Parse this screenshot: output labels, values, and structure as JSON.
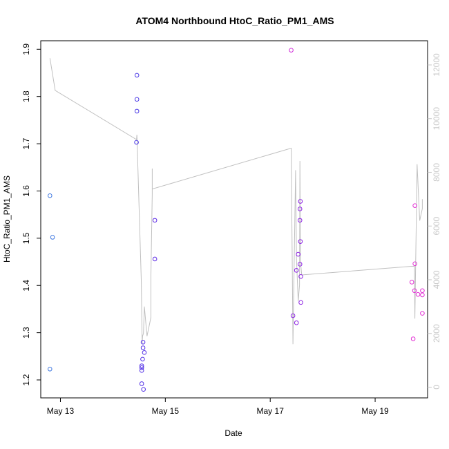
{
  "chart_data": {
    "type": "scatter",
    "title": "ATOM4 Northbound HtoC_Ratio_PM1_AMS",
    "xlabel": "Date",
    "ylabel": "HtoC_Ratio_PM1_AMS",
    "x_ticks": [
      "May 13",
      "May 15",
      "May 17",
      "May 19"
    ],
    "x_tick_dates": [
      "2016-05-13",
      "2016-05-15",
      "2016-05-17",
      "2016-05-19"
    ],
    "xlim": [
      "2016-05-12T15:00",
      "2016-05-20T00:00"
    ],
    "y_ticks": [
      "1.2",
      "1.3",
      "1.4",
      "1.5",
      "1.6",
      "1.7",
      "1.8",
      "1.9"
    ],
    "ylim": [
      1.162,
      1.918
    ],
    "y2_ticks": [
      "0",
      "2000",
      "4000",
      "6000",
      "8000",
      "10000",
      "12000"
    ],
    "y2lim": [
      -400,
      12900
    ],
    "grid": false,
    "legend": "none",
    "colors": {
      "points_start": "#3f78e0",
      "points_mid": "#6a1de8",
      "points_end": "#e22ed4",
      "line": "#c0c0c0",
      "right_axis": "#c8c8c8",
      "axis": "#000000"
    },
    "points": [
      {
        "x": "2016-05-12T19:12",
        "y": 1.59,
        "color": "#3f78e0"
      },
      {
        "x": "2016-05-12T20:24",
        "y": 1.502,
        "color": "#3f78e0"
      },
      {
        "x": "2016-05-12T19:12",
        "y": 1.223,
        "color": "#3f78e0"
      },
      {
        "x": "2016-05-14T11:00",
        "y": 1.845,
        "color": "#4b3ae6"
      },
      {
        "x": "2016-05-14T11:00",
        "y": 1.794,
        "color": "#4b3ae6"
      },
      {
        "x": "2016-05-14T11:00",
        "y": 1.769,
        "color": "#4b3ae6"
      },
      {
        "x": "2016-05-14T10:48",
        "y": 1.703,
        "color": "#4b3ae6"
      },
      {
        "x": "2016-05-14T13:12",
        "y": 1.23,
        "color": "#5230e6"
      },
      {
        "x": "2016-05-14T13:12",
        "y": 1.226,
        "color": "#5230e6"
      },
      {
        "x": "2016-05-14T13:12",
        "y": 1.22,
        "color": "#5230e6"
      },
      {
        "x": "2016-05-14T13:12",
        "y": 1.192,
        "color": "#5230e6"
      },
      {
        "x": "2016-05-14T14:00",
        "y": 1.18,
        "color": "#5230e6"
      },
      {
        "x": "2016-05-14T13:48",
        "y": 1.28,
        "color": "#5230e6"
      },
      {
        "x": "2016-05-14T13:48",
        "y": 1.268,
        "color": "#5230e6"
      },
      {
        "x": "2016-05-14T14:24",
        "y": 1.258,
        "color": "#5230e6"
      },
      {
        "x": "2016-05-14T13:36",
        "y": 1.244,
        "color": "#5230e6"
      },
      {
        "x": "2016-05-14T19:12",
        "y": 1.538,
        "color": "#5b27e6"
      },
      {
        "x": "2016-05-14T19:12",
        "y": 1.456,
        "color": "#5b27e6"
      },
      {
        "x": "2016-05-17T09:36",
        "y": 1.898,
        "color": "#d02cd8"
      },
      {
        "x": "2016-05-17T13:48",
        "y": 1.578,
        "color": "#8d22e4"
      },
      {
        "x": "2016-05-17T13:36",
        "y": 1.562,
        "color": "#8d22e4"
      },
      {
        "x": "2016-05-17T13:36",
        "y": 1.538,
        "color": "#8d22e4"
      },
      {
        "x": "2016-05-17T13:48",
        "y": 1.493,
        "color": "#8d22e4"
      },
      {
        "x": "2016-05-17T12:48",
        "y": 1.466,
        "color": "#8d22e4"
      },
      {
        "x": "2016-05-17T13:36",
        "y": 1.445,
        "color": "#8d22e4"
      },
      {
        "x": "2016-05-17T12:00",
        "y": 1.432,
        "color": "#8d22e4"
      },
      {
        "x": "2016-05-17T14:00",
        "y": 1.419,
        "color": "#8d22e4"
      },
      {
        "x": "2016-05-17T14:00",
        "y": 1.364,
        "color": "#8d22e4"
      },
      {
        "x": "2016-05-17T10:24",
        "y": 1.336,
        "color": "#8d22e4"
      },
      {
        "x": "2016-05-17T12:00",
        "y": 1.321,
        "color": "#8d22e4"
      },
      {
        "x": "2016-05-19T18:12",
        "y": 1.569,
        "color": "#e22ed4"
      },
      {
        "x": "2016-05-19T18:12",
        "y": 1.446,
        "color": "#e22ed4"
      },
      {
        "x": "2016-05-19T16:48",
        "y": 1.407,
        "color": "#e22ed4"
      },
      {
        "x": "2016-05-19T18:00",
        "y": 1.389,
        "color": "#e22ed4"
      },
      {
        "x": "2016-05-19T19:36",
        "y": 1.381,
        "color": "#e22ed4"
      },
      {
        "x": "2016-05-19T21:36",
        "y": 1.389,
        "color": "#e22ed4"
      },
      {
        "x": "2016-05-19T21:36",
        "y": 1.38,
        "color": "#e22ed4"
      },
      {
        "x": "2016-05-19T21:36",
        "y": 1.341,
        "color": "#e22ed4"
      },
      {
        "x": "2016-05-19T17:24",
        "y": 1.287,
        "color": "#e22ed4"
      }
    ],
    "line_series_right_axis": {
      "x": [
        "2016-05-12T19:12",
        "2016-05-12T21:36",
        "2016-05-14T10:48",
        "2016-05-14T11:00",
        "2016-05-14T13:00",
        "2016-05-14T13:24",
        "2016-05-14T13:36",
        "2016-05-14T14:00",
        "2016-05-14T14:24",
        "2016-05-14T15:36",
        "2016-05-14T17:24",
        "2016-05-14T17:24",
        "2016-05-14T18:00",
        "2016-05-14T18:00",
        "2016-05-14T18:00",
        "2016-05-14T18:00",
        "2016-05-17T09:36",
        "2016-05-17T09:36",
        "2016-05-17T10:24",
        "2016-05-17T10:48",
        "2016-05-17T11:36",
        "2016-05-17T12:00",
        "2016-05-17T12:48",
        "2016-05-17T13:24",
        "2016-05-17T13:36",
        "2016-05-17T13:48",
        "2016-05-17T14:24",
        "2016-05-17T14:24",
        "2016-05-19T16:48",
        "2016-05-19T18:00",
        "2016-05-19T18:12",
        "2016-05-19T19:12",
        "2016-05-19T20:24",
        "2016-05-19T21:36",
        "2016-05-19T21:36"
      ],
      "y": [
        12250,
        11050,
        9220,
        9400,
        4000,
        1600,
        1900,
        2000,
        3000,
        1900,
        2600,
        4200,
        7200,
        8140,
        7550,
        7380,
        8900,
        8900,
        1600,
        3800,
        8080,
        4800,
        3200,
        3800,
        8420,
        4700,
        4180,
        4180,
        4500,
        4500,
        2550,
        8300,
        6200,
        6650,
        7000
      ]
    }
  }
}
